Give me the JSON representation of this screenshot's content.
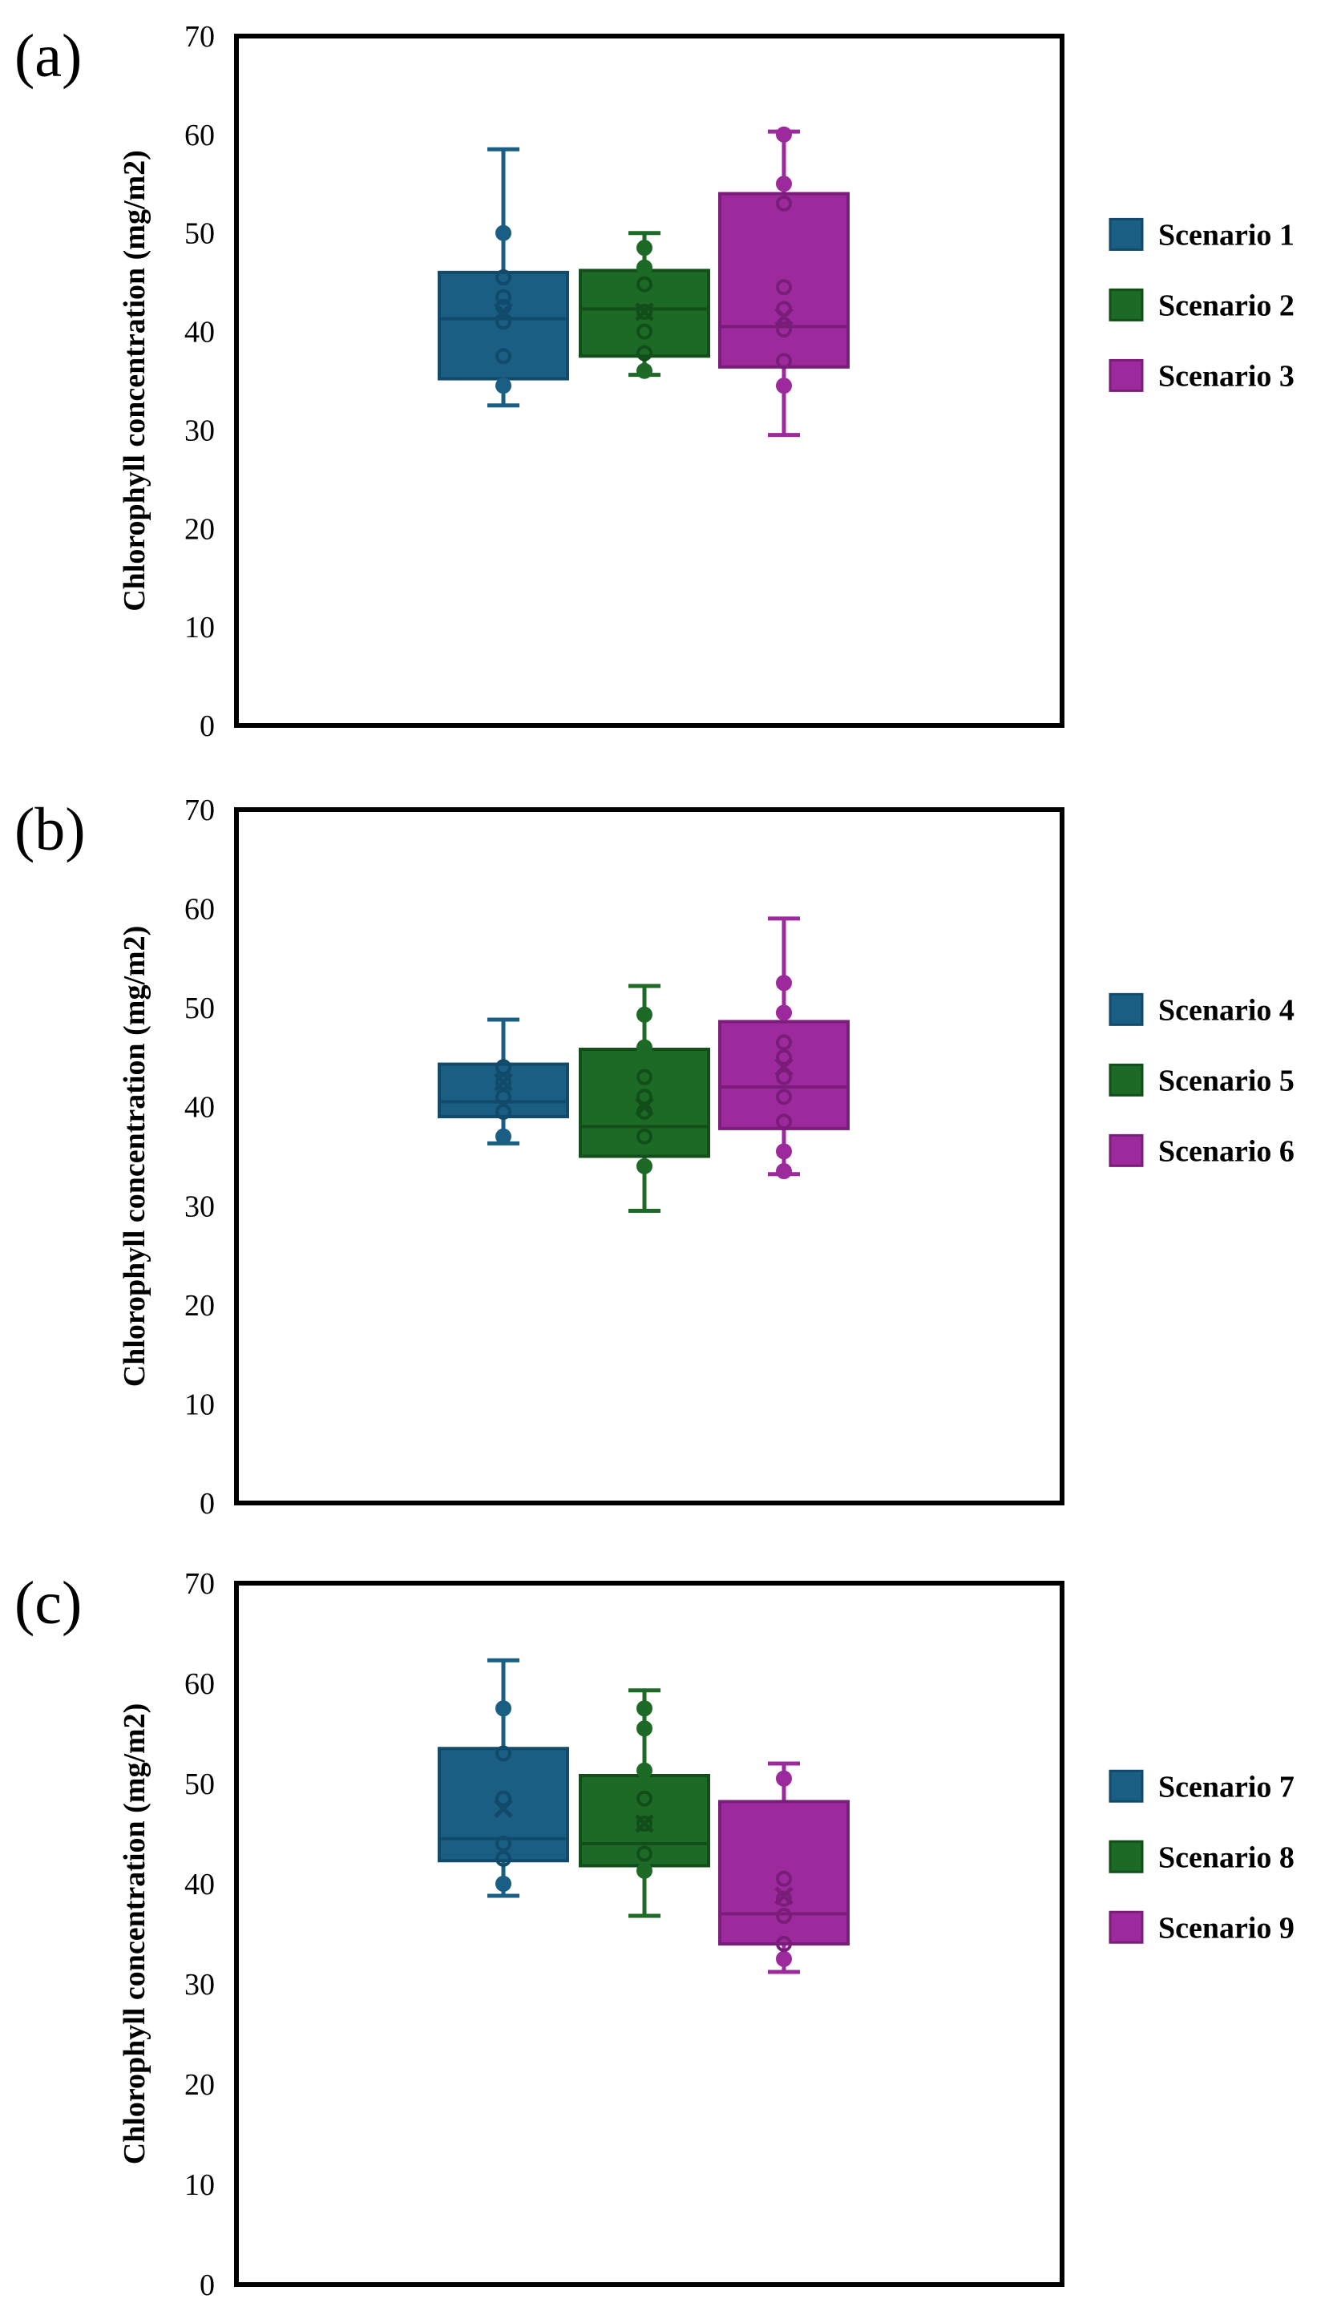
{
  "colors": {
    "blue": "#1a5e84",
    "blue_dark": "#114a6a",
    "green": "#1c6a26",
    "green_dark": "#124e19",
    "magenta": "#9c2a9c",
    "magenta_dark": "#7a1d7a",
    "axis": "#000000"
  },
  "chart_data": [
    {
      "type": "box",
      "panel_label": "(a)",
      "ylabel": "Chlorophyll concentration (mg/m2)",
      "ylim": [
        0,
        70
      ],
      "yticks": [
        "0",
        "10",
        "20",
        "30",
        "40",
        "50",
        "60",
        "70"
      ],
      "legend_position": "right",
      "series": [
        {
          "name": "Scenario 1",
          "color": "blue",
          "min": 32.5,
          "q1": 35.2,
          "median": 41.3,
          "q3": 46.0,
          "max": 58.5,
          "mean": 42.0,
          "points": [
            34.5,
            37.5,
            41.0,
            42.5,
            43.5,
            45.5,
            50.0
          ]
        },
        {
          "name": "Scenario 2",
          "color": "green",
          "min": 35.6,
          "q1": 37.5,
          "median": 42.3,
          "q3": 46.2,
          "max": 50.0,
          "mean": 42.0,
          "points": [
            36.0,
            37.8,
            40.0,
            42.0,
            44.8,
            46.5,
            48.5
          ]
        },
        {
          "name": "Scenario 3",
          "color": "magenta",
          "min": 29.5,
          "q1": 36.4,
          "median": 40.5,
          "q3": 54.0,
          "max": 60.3,
          "mean": 41.5,
          "points": [
            34.5,
            37.0,
            40.2,
            42.3,
            44.5,
            53.0,
            55.0,
            60.0
          ]
        }
      ]
    },
    {
      "type": "box",
      "panel_label": "(b)",
      "ylabel": "Chlorophyll concentration (mg/m2)",
      "ylim": [
        0,
        70
      ],
      "yticks": [
        "0",
        "10",
        "20",
        "30",
        "40",
        "50",
        "60",
        "70"
      ],
      "legend_position": "right",
      "series": [
        {
          "name": "Scenario 4",
          "color": "blue",
          "min": 36.3,
          "q1": 39.0,
          "median": 40.5,
          "q3": 44.3,
          "max": 48.8,
          "mean": 42.5,
          "points": [
            37.0,
            39.5,
            41.0,
            42.5,
            44.0
          ]
        },
        {
          "name": "Scenario 5",
          "color": "green",
          "min": 29.5,
          "q1": 35.0,
          "median": 38.0,
          "q3": 45.8,
          "max": 52.2,
          "mean": 40.0,
          "points": [
            34.0,
            37.0,
            39.5,
            41.0,
            43.0,
            46.0,
            49.3
          ]
        },
        {
          "name": "Scenario 6",
          "color": "magenta",
          "min": 33.2,
          "q1": 37.8,
          "median": 42.0,
          "q3": 48.6,
          "max": 59.0,
          "mean": 44.0,
          "points": [
            33.5,
            35.5,
            38.5,
            41.0,
            43.0,
            45.0,
            46.5,
            49.5,
            52.5
          ]
        }
      ]
    },
    {
      "type": "box",
      "panel_label": "(c)",
      "ylabel": "Chlorophyll concentration (mg/m2)",
      "ylim": [
        0,
        70
      ],
      "yticks": [
        "0",
        "10",
        "20",
        "30",
        "40",
        "50",
        "60",
        "70"
      ],
      "legend_position": "right",
      "series": [
        {
          "name": "Scenario 7",
          "color": "blue",
          "min": 38.8,
          "q1": 42.3,
          "median": 44.5,
          "q3": 53.5,
          "max": 62.3,
          "mean": 47.5,
          "points": [
            40.0,
            42.5,
            44.0,
            48.5,
            53.0,
            57.5
          ]
        },
        {
          "name": "Scenario 8",
          "color": "green",
          "min": 36.8,
          "q1": 41.8,
          "median": 44.0,
          "q3": 50.8,
          "max": 59.3,
          "mean": 46.0,
          "points": [
            41.3,
            43.0,
            46.0,
            48.5,
            51.3,
            55.5,
            57.5
          ]
        },
        {
          "name": "Scenario 9",
          "color": "magenta",
          "min": 31.2,
          "q1": 34.0,
          "median": 37.0,
          "q3": 48.2,
          "max": 52.0,
          "mean": 38.8,
          "points": [
            32.5,
            34.0,
            36.8,
            38.5,
            40.5,
            50.5
          ]
        }
      ]
    }
  ]
}
